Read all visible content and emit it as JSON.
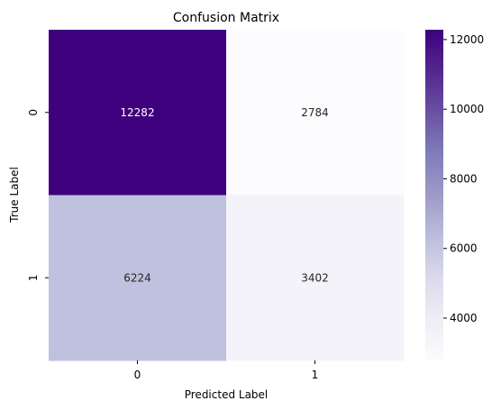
{
  "chart_data": {
    "type": "heatmap",
    "title": "Confusion Matrix",
    "xlabel": "Predicted Label",
    "ylabel": "True Label",
    "x_categories": [
      "0",
      "1"
    ],
    "y_categories": [
      "0",
      "1"
    ],
    "values": [
      [
        12282,
        2784
      ],
      [
        6224,
        3402
      ]
    ],
    "colormap": "Purples",
    "color_range": [
      2784,
      12282
    ],
    "colorbar_ticks": [
      4000,
      6000,
      8000,
      10000,
      12000
    ],
    "cell_colors": [
      [
        "#3f007d",
        "#fcfbfd"
      ],
      [
        "#c0c1df",
        "#f4f3f9"
      ]
    ],
    "text_colors": [
      [
        "#ffffff",
        "#262626"
      ],
      [
        "#262626",
        "#262626"
      ]
    ],
    "colorbar_stops": [
      "#fcfbfd",
      "#efedf5",
      "#dadaeb",
      "#bcbddc",
      "#9e9ac8",
      "#807dba",
      "#6a51a3",
      "#54278f",
      "#3f007d"
    ]
  }
}
